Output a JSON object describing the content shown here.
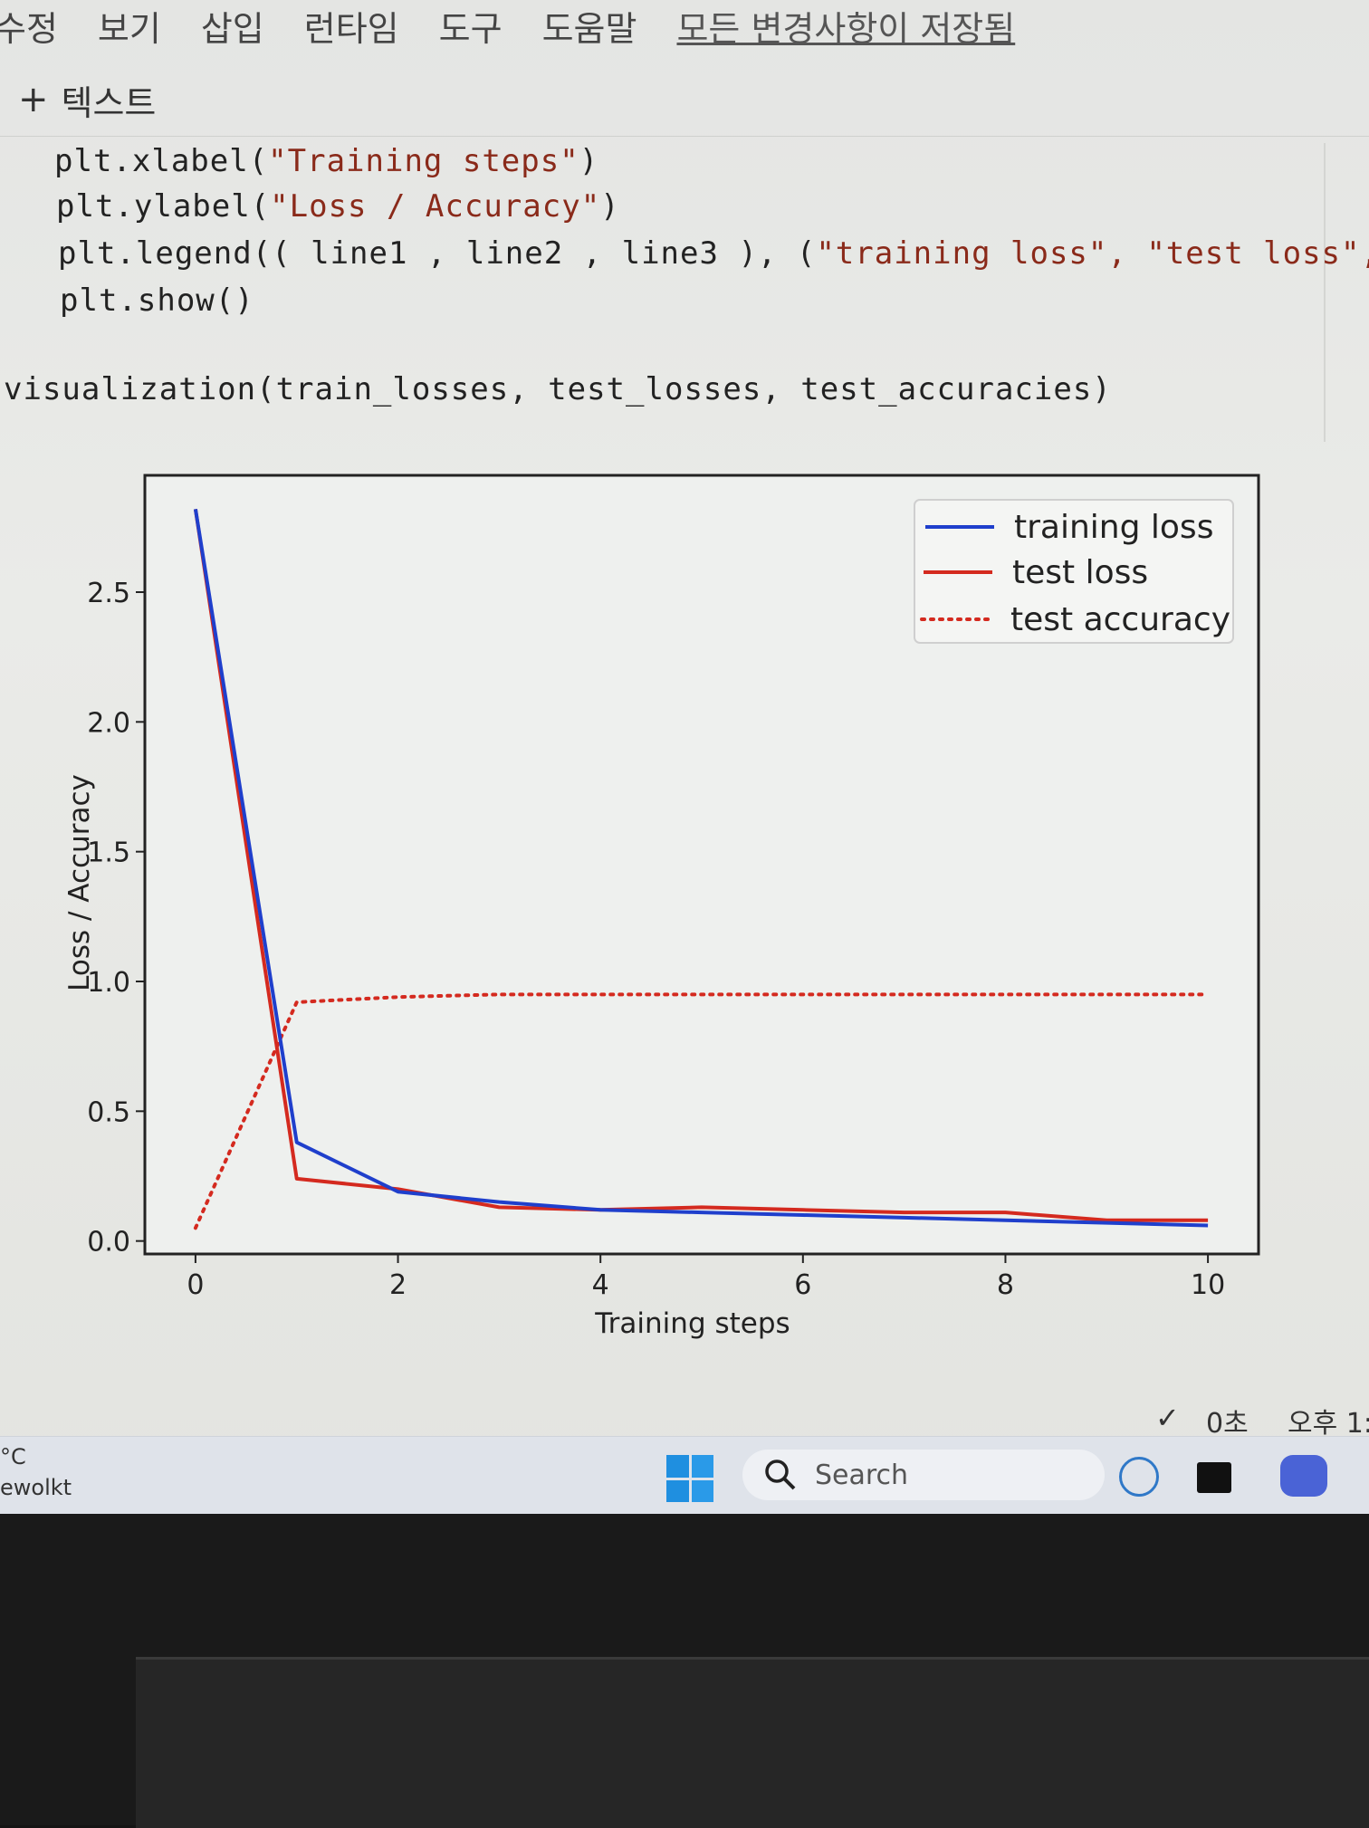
{
  "menu": {
    "items": [
      "수정",
      "보기",
      "삽입",
      "런타임",
      "도구",
      "도움말"
    ],
    "save_status": "모든 변경사항이 저장됨"
  },
  "toolbar": {
    "add_text_label": "텍스트"
  },
  "code": {
    "line1_fn": "plt.xlabel(",
    "line1_str": "\"Training steps\"",
    "line1_end": ")",
    "line2_fn": "plt.ylabel(",
    "line2_str": "\"Loss / Accuracy\"",
    "line2_end": ")",
    "line3_fn": "plt.legend(( line1 , line2 , line3 ), (",
    "line3_str": "\"training loss\", \"test loss\", \"test accu",
    "line4": "plt.show()",
    "call": "visualization(train_losses, test_losses, test_accuracies)"
  },
  "status": {
    "check_text": "0초",
    "time_text": "오후 1:"
  },
  "taskbar": {
    "left_line1": "°C",
    "left_line2": "ewolkt",
    "search_placeholder": "Search"
  },
  "chart_data": {
    "type": "line",
    "xlabel": "Training steps",
    "ylabel": "Loss / Accuracy",
    "xlim": [
      -0.5,
      10.5
    ],
    "ylim": [
      -0.05,
      2.95
    ],
    "xticks": [
      "0",
      "2",
      "4",
      "6",
      "8",
      "10"
    ],
    "yticks": [
      "0.0",
      "0.5",
      "1.0",
      "1.5",
      "2.0",
      "2.5"
    ],
    "legend_position": "top-right",
    "x": [
      0,
      1,
      2,
      3,
      4,
      5,
      6,
      7,
      8,
      9,
      10
    ],
    "series": [
      {
        "name": "training loss",
        "color": "#1f3fcc",
        "style": "solid",
        "values": [
          2.82,
          0.38,
          0.19,
          0.15,
          0.12,
          0.11,
          0.1,
          0.09,
          0.08,
          0.07,
          0.06
        ]
      },
      {
        "name": "test loss",
        "color": "#d42a1f",
        "style": "solid",
        "values": [
          2.82,
          0.24,
          0.2,
          0.13,
          0.12,
          0.13,
          0.12,
          0.11,
          0.11,
          0.08,
          0.08
        ]
      },
      {
        "name": "test accuracy",
        "color": "#d42a1f",
        "style": "dotted",
        "values": [
          0.05,
          0.92,
          0.94,
          0.95,
          0.95,
          0.95,
          0.95,
          0.95,
          0.95,
          0.95,
          0.95
        ]
      }
    ]
  }
}
